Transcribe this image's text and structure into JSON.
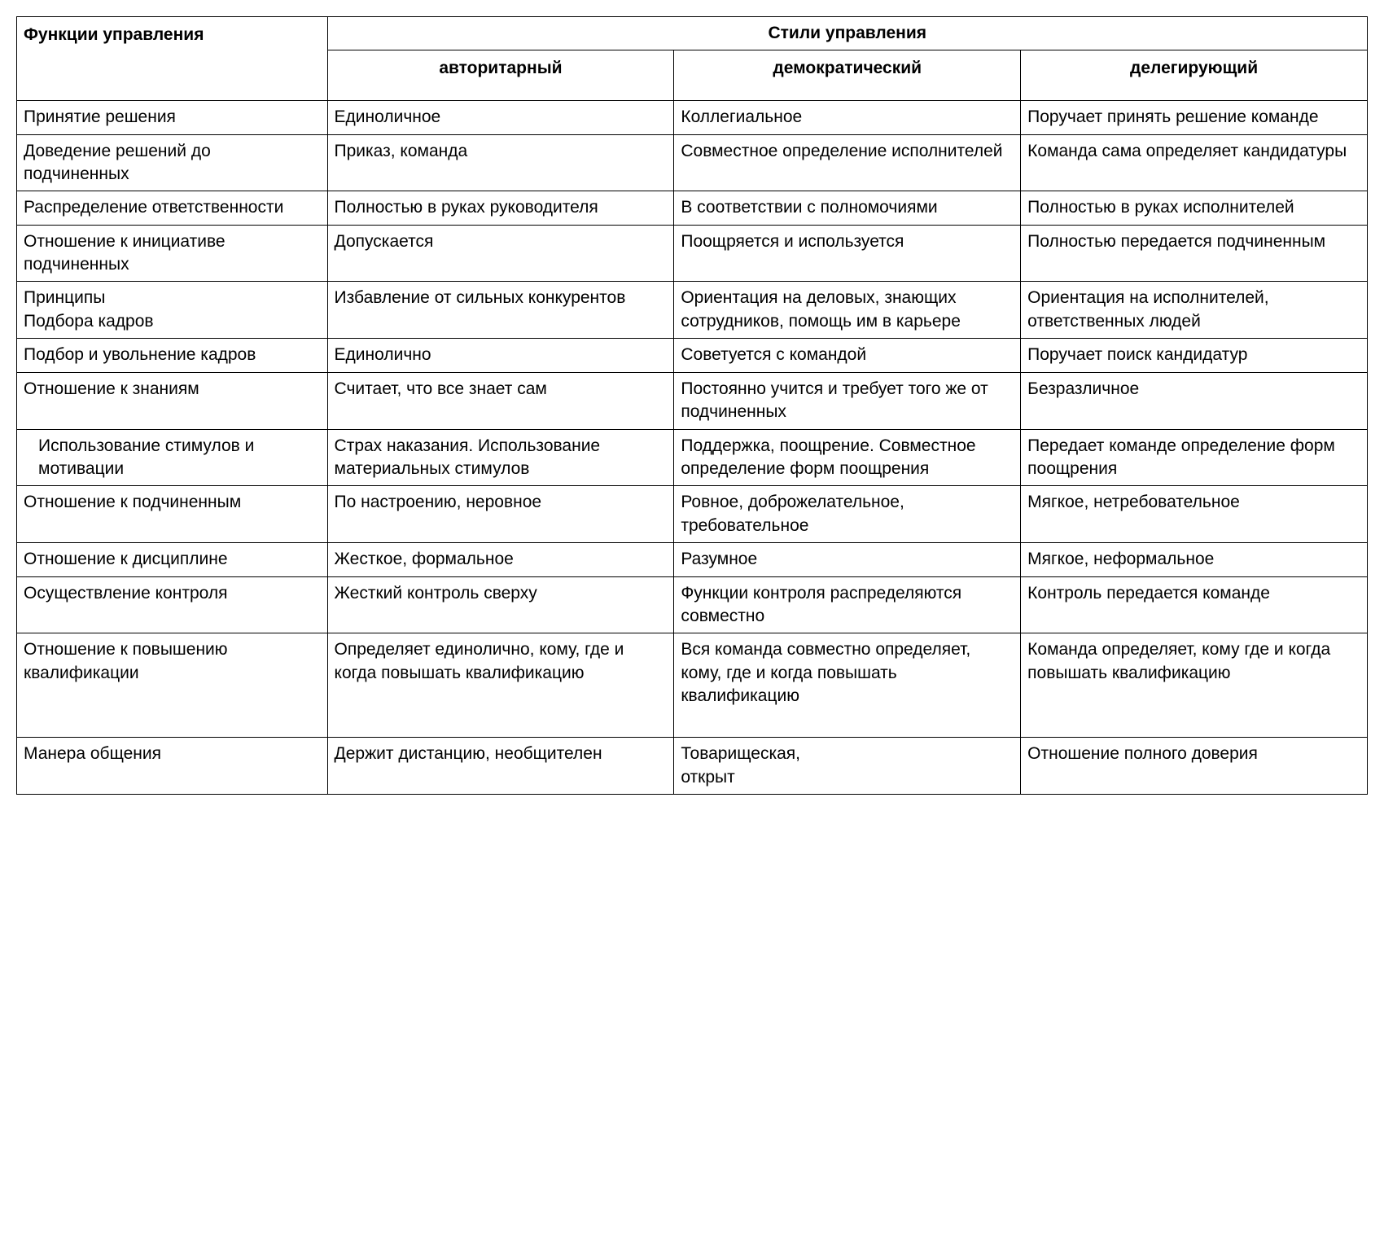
{
  "table": {
    "type": "table",
    "background_color": "#ffffff",
    "border_color": "#000000",
    "text_color": "#000000",
    "font_family": "Arial",
    "font_size_pt": 16,
    "header": {
      "functions_label": "Функции управления",
      "styles_label": "Стили управления",
      "subheaders": [
        "авторитарный",
        "демократический",
        "делегирующий"
      ]
    },
    "column_widths_percent": [
      23,
      25.67,
      25.67,
      25.67
    ],
    "rows": [
      {
        "function": "Принятие решения",
        "authoritarian": "Единоличное",
        "democratic": "Коллегиальное",
        "delegating": "Поручает принять решение команде",
        "clipped": true
      },
      {
        "function": "Доведение решений до подчиненных",
        "authoritarian": "Приказ, команда",
        "democratic": "Совместное определение исполнителей",
        "delegating": "Команда сама определяет кандидатуры"
      },
      {
        "function": "Распределение ответственности",
        "authoritarian": "Полностью в руках руководителя",
        "democratic": "В соответствии с полномочиями",
        "delegating": "Полностью в руках исполнителей"
      },
      {
        "function": "Отношение к инициативе подчиненных",
        "authoritarian": "Допускается",
        "democratic": "Поощряется и используется",
        "delegating": "Полностью передается подчиненным"
      },
      {
        "function": "Принципы\nПодбора кадров",
        "authoritarian": "Избавление от сильных конкурентов",
        "democratic": "Ориентация на деловых, знающих сотрудников, помощь им в карьере",
        "delegating": "Ориентация на исполнителей, ответственных людей"
      },
      {
        "function": "Подбор  и увольнение кадров",
        "authoritarian": "Единолично",
        "democratic": "Советуется с командой",
        "delegating": "Поручает поиск кандидатур",
        "clipped": true
      },
      {
        "function": "Отношение к знаниям",
        "authoritarian": "Считает, что все знает сам",
        "democratic": "Постоянно учится и требует того же от подчиненных",
        "delegating": "Безразличное"
      },
      {
        "function": "Использование стимулов и мотивации",
        "function_indent": true,
        "authoritarian": "Страх наказания. Использование материальных стимулов",
        "democratic": "Поддержка, поощрение. Совместное определение форм поощрения",
        "delegating": "Передает команде определение форм поощрения"
      },
      {
        "function": "Отношение к подчиненным",
        "authoritarian": "По настроению, неровное",
        "democratic": "Ровное, доброжелательное, требовательное",
        "delegating": "Мягкое, нетребовательное"
      },
      {
        "function": "Отношение к дисциплине",
        "authoritarian": "Жесткое, формальное",
        "democratic": "Разумное",
        "delegating": "Мягкое, неформальное"
      },
      {
        "function": "Осуществление контроля",
        "authoritarian": "Жесткий контроль сверху",
        "democratic": "Функции контроля распределяются совместно",
        "delegating": "Контроль передается команде"
      },
      {
        "function": "Отношение к повышению квалификации",
        "authoritarian": "Определяет единолично, кому, где и когда повышать квалификацию",
        "democratic": "Вся команда совместно определяет, кому, где и когда повышать квалификацию",
        "delegating": "Команда определяет, кому где и когда повышать квалификацию",
        "extra_bottom_space": true
      },
      {
        "function": "Манера общения",
        "authoritarian": "Держит дистанцию, необщителен",
        "democratic": "Товарищеская,\nоткрыт",
        "delegating": "Отношение полного доверия"
      }
    ]
  }
}
